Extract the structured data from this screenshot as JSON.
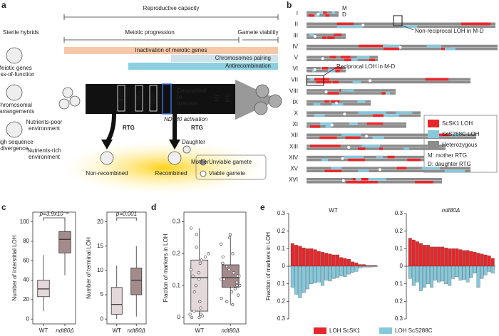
{
  "panel_a": {
    "label": "a",
    "reproductive_capacity": "Reproductive capacity",
    "meiotic_progression": "Meiotic progression",
    "gamete_viability": "Gamete viability",
    "sterile_hybrids": "Sterile hybrids",
    "causes": [
      [
        "Meiotic genes",
        "Loss-of-function"
      ],
      [
        "Chromosomal",
        "rearrangements"
      ],
      [
        "High sequence",
        "divergence"
      ]
    ],
    "bars": [
      "Inactivation of meiotic genes",
      "Chromosomes pairing",
      "Antirecombination"
    ],
    "stages": [
      "S-phase",
      "DSBs",
      "COs"
    ],
    "committed": [
      "Committed",
      "to",
      "meiosis"
    ],
    "divisions": [
      "MI",
      "MII"
    ],
    "ndt80": "NDT80 activation",
    "poor_env": [
      "Nutrients-poor",
      "environment"
    ],
    "rich_env": [
      "Nutrients-rich",
      "environment"
    ],
    "rtg": [
      "RTG",
      "RTG"
    ],
    "daughter": "Daughter",
    "mother": "Mother",
    "outcomes": [
      "Non-recombined",
      "Recombined"
    ],
    "legend": [
      "Unviable gamete",
      "Viable gamete"
    ]
  },
  "panel_b": {
    "label": "b",
    "chromosomes": [
      "I",
      "II",
      "III",
      "IV",
      "V",
      "VI",
      "VII",
      "VIII",
      "IX",
      "X",
      "XI",
      "XII",
      "XIII",
      "XIV",
      "XV",
      "XVI"
    ],
    "m": "M",
    "d": "D",
    "callouts": [
      "Non-reciprocal LOH in M-D",
      "Reciprocal LOH in M-D"
    ],
    "legend": [
      {
        "name": "ScSK1 LOH",
        "color": "#e8262a"
      },
      {
        "name": "ScS288C LOH",
        "color": "#86c8dc"
      },
      {
        "name": "Heterozygous",
        "color": "#8c8c8c"
      }
    ],
    "notes": [
      "M: mother RTG",
      "D: daughter RTG"
    ]
  },
  "panel_labels": [
    "c",
    "d",
    "e"
  ],
  "chart_data": [
    {
      "type": "box",
      "ylabel": "Number of interstitial LOH",
      "categories": [
        "WT",
        "ndt80Δ"
      ],
      "colors": [
        "#e4d8da",
        "#a58a8c"
      ],
      "boxes": [
        {
          "min": 8,
          "q1": 23,
          "median": 31,
          "q3": 40,
          "max": 66
        },
        {
          "min": 45,
          "q1": 68,
          "median": 82,
          "q3": 90,
          "max": 103
        }
      ],
      "annotation": "p=3.9x10⁻⁴",
      "ylim": [
        -5,
        110
      ],
      "yticks": [
        0,
        20,
        40,
        60,
        80,
        100
      ]
    },
    {
      "type": "box",
      "ylabel": "Number of terminal LOH",
      "categories": [
        "WT",
        "ndt80Δ"
      ],
      "colors": [
        "#e4d8da",
        "#a58a8c"
      ],
      "boxes": [
        {
          "min": 0,
          "q1": 1,
          "median": 3,
          "q3": 6.5,
          "max": 11
        },
        {
          "min": 0.5,
          "q1": 5,
          "median": 8,
          "q3": 10.5,
          "max": 15
        }
      ],
      "annotation": "p=0.001",
      "ylim": [
        -1,
        22
      ],
      "yticks": [
        0,
        5,
        10,
        15,
        20
      ]
    },
    {
      "type": "box",
      "ylabel": "Fraction of markers in LOH",
      "categories": [
        "WT",
        "ndt80Δ"
      ],
      "colors": [
        "#e4d8da",
        "#a58a8c"
      ],
      "boxes": [
        {
          "min": 0,
          "q1": 0.02,
          "median": 0.125,
          "q3": 0.18,
          "max": 0.28
        },
        {
          "min": 0.04,
          "q1": 0.095,
          "median": 0.125,
          "q3": 0.165,
          "max": 0.26
        }
      ],
      "points": [
        [
          0.28,
          0.26,
          0.22,
          0.2,
          0.19,
          0.18,
          0.17,
          0.15,
          0.14,
          0.13,
          0.12,
          0.1,
          0.08,
          0.05,
          0.03,
          0.02,
          0.01,
          0.005,
          0,
          0,
          0.01
        ],
        [
          0.26,
          0.25,
          0.23,
          0.2,
          0.19,
          0.17,
          0.16,
          0.15,
          0.14,
          0.13,
          0.13,
          0.12,
          0.12,
          0.11,
          0.1,
          0.1,
          0.09,
          0.08,
          0.07,
          0.06,
          0.05,
          0.04
        ]
      ],
      "ylim": [
        -0.02,
        0.33
      ],
      "yticks": [
        0,
        0.1,
        0.2,
        0.3
      ]
    },
    {
      "type": "bar",
      "title": "WT",
      "ylabel": "Fraction of markers in LOH",
      "ylim": [
        -0.3,
        0.3
      ],
      "yticks": [
        0.3,
        0.2,
        0.1,
        0,
        {
          "value": -0.1,
          "label": "0.1"
        },
        {
          "value": -0.2,
          "label": "0.2"
        },
        {
          "value": -0.3,
          "label": "0.3"
        }
      ],
      "series": [
        {
          "name": "LOH ScSK1",
          "color": "#e8262a",
          "values": [
            0.13,
            0.12,
            0.115,
            0.105,
            0.1,
            0.1,
            0.095,
            0.085,
            0.08,
            0.075,
            0.07,
            0.065,
            0.065,
            0.05,
            0.045,
            0.04,
            0.025,
            0.02,
            0.01,
            0.01,
            0.005,
            0.005,
            0.005
          ]
        },
        {
          "name": "LOH ScS288C",
          "color": "#86c8dc",
          "values": [
            -0.12,
            -0.16,
            -0.18,
            -0.15,
            -0.13,
            -0.1,
            -0.095,
            -0.09,
            -0.11,
            -0.08,
            -0.085,
            -0.07,
            -0.065,
            -0.055,
            -0.06,
            -0.045,
            -0.035,
            -0.03,
            -0.01,
            -0.005,
            -0.005,
            -0.005,
            -0.002
          ]
        }
      ]
    },
    {
      "type": "bar",
      "title": "ndt80Δ",
      "ylim": [
        -0.3,
        0.3
      ],
      "yticks": [
        0.3,
        0.2,
        0.1,
        0,
        {
          "value": -0.1,
          "label": "0.1"
        },
        {
          "value": -0.2,
          "label": "0.2"
        },
        {
          "value": -0.3,
          "label": "0.3"
        }
      ],
      "series": [
        {
          "color": "#e8262a",
          "values": [
            0.16,
            0.15,
            0.14,
            0.13,
            0.12,
            0.12,
            0.11,
            0.11,
            0.11,
            0.11,
            0.105,
            0.1,
            0.1,
            0.1,
            0.095,
            0.09,
            0.09,
            0.085,
            0.08,
            0.075,
            0.07,
            0.065,
            0.06,
            0.045
          ]
        },
        {
          "color": "#86c8dc",
          "values": [
            -0.07,
            -0.11,
            -0.09,
            -0.14,
            -0.12,
            -0.1,
            -0.12,
            -0.08,
            -0.09,
            -0.085,
            -0.1,
            -0.11,
            -0.07,
            -0.06,
            -0.08,
            -0.075,
            -0.09,
            -0.065,
            -0.04,
            -0.12,
            -0.07,
            -0.05,
            -0.03,
            -0.04
          ]
        }
      ]
    }
  ]
}
